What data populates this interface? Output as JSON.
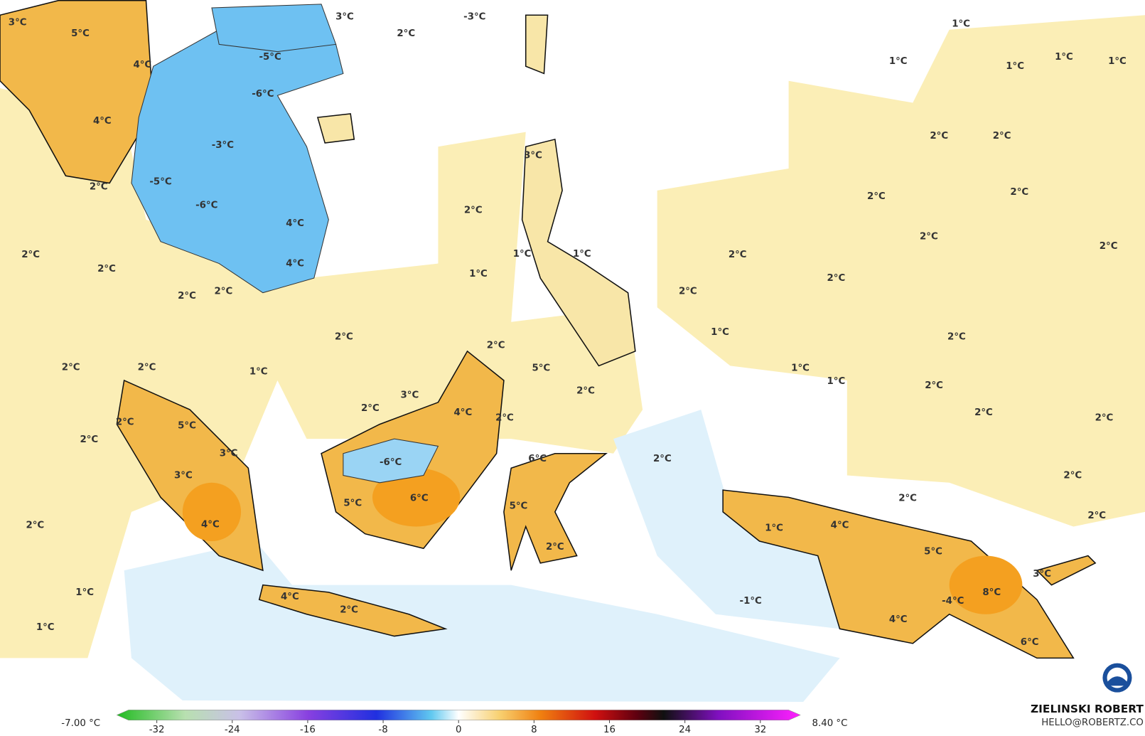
{
  "map": {
    "labels": [
      "3°C",
      "5°C",
      "3°C",
      "-3°C",
      "2°C",
      "1°C",
      "1°C",
      "1°C",
      "1°C",
      "1°C",
      "-5°C",
      "4°C",
      "-6°C",
      "4°C",
      "-3°C",
      "3°C",
      "2°C",
      "-5°C",
      "-6°C",
      "2°C",
      "2°C",
      "2°C",
      "2°C",
      "2°C",
      "4°C",
      "2°C",
      "2°C",
      "2°C",
      "1°C",
      "1°C",
      "4°C",
      "2°C",
      "1°C",
      "2°C",
      "2°C",
      "2°C",
      "2°C",
      "2°C",
      "2°C",
      "1°C",
      "2°C",
      "2°C",
      "1°C",
      "1°C",
      "2°C",
      "2°C",
      "1°C",
      "5°C",
      "2°C",
      "2°C",
      "3°C",
      "2°C",
      "4°C",
      "2°C",
      "2°C",
      "2°C",
      "2°C",
      "5°C",
      "2°C",
      "3°C",
      "6°C",
      "2°C",
      "-6°C",
      "3°C",
      "2°C",
      "6°C",
      "5°C",
      "2°C",
      "5°C",
      "2°C",
      "4°C",
      "2°C",
      "4°C",
      "1°C",
      "2°C",
      "5°C",
      "3°C",
      "1°C",
      "8°C",
      "4°C",
      "-4°C",
      "-1°C",
      "2°C",
      "4°C",
      "1°C",
      "6°C"
    ]
  },
  "colorbar": {
    "min_label": "-7.00 °C",
    "max_label": "8.40 °C",
    "lim": [
      -35,
      35
    ],
    "ticks": [
      -32,
      -24,
      -16,
      -8,
      0,
      8,
      16,
      24,
      32
    ]
  },
  "credit": {
    "name": "ZIELINSKI ROBERT",
    "email": "HELLO@ROBERTZ.CO"
  }
}
